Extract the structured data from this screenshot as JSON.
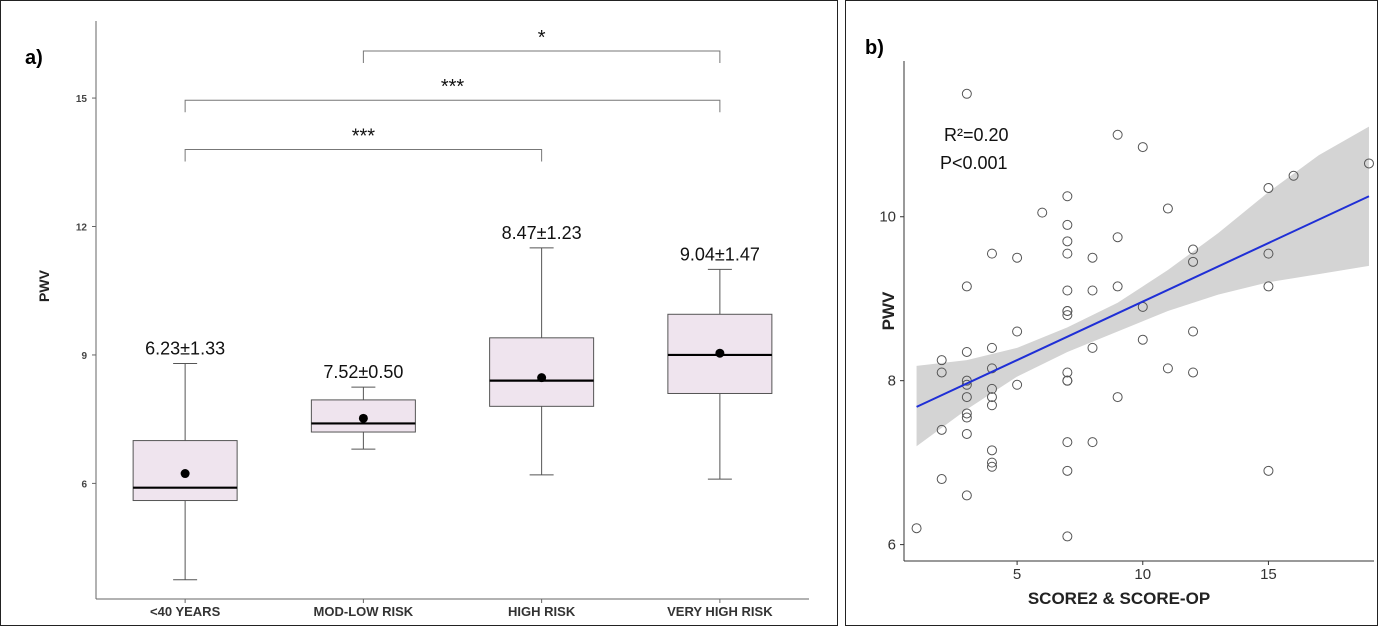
{
  "chart_data": [
    {
      "type": "box",
      "panel_label": "a)",
      "ylabel": "PWV",
      "xlabel": "",
      "ylim": [
        3.3,
        16.8
      ],
      "yticks": [
        6,
        9,
        12,
        15
      ],
      "categories": [
        "<40 YEARS",
        "MOD-LOW RISK",
        "HIGH RISK",
        "VERY HIGH RISK"
      ],
      "boxes": [
        {
          "min": 3.75,
          "q1": 5.6,
          "median": 5.9,
          "q3": 7.0,
          "max": 8.8,
          "mean": 6.23
        },
        {
          "min": 6.8,
          "q1": 7.2,
          "median": 7.4,
          "q3": 7.95,
          "max": 8.25,
          "mean": 7.52
        },
        {
          "min": 6.2,
          "q1": 7.8,
          "median": 8.4,
          "q3": 9.4,
          "max": 11.5,
          "mean": 8.47
        },
        {
          "min": 6.1,
          "q1": 8.1,
          "median": 9.0,
          "q3": 9.95,
          "max": 11.0,
          "mean": 9.04
        }
      ],
      "mean_labels": [
        "6.23±1.33",
        "7.52±0.50",
        "8.47±1.23",
        "9.04±1.47"
      ],
      "significance": [
        {
          "from": 1,
          "to": 3,
          "label": "*",
          "y": 16.1
        },
        {
          "from": 0,
          "to": 3,
          "label": "***",
          "y": 14.95
        },
        {
          "from": 0,
          "to": 2,
          "label": "***",
          "y": 13.8
        }
      ],
      "colors": {
        "box_fill": "#efe4ee",
        "box_stroke": "#555555",
        "median": "#000000",
        "mean": "#000000"
      }
    },
    {
      "type": "scatter",
      "panel_label": "b)",
      "xlabel": "SCORE2 & SCORE-OP",
      "ylabel": "PWV",
      "xlim": [
        0.5,
        19.2
      ],
      "ylim": [
        5.8,
        11.9
      ],
      "xticks": [
        5,
        10,
        15
      ],
      "yticks": [
        6,
        8,
        10
      ],
      "annotations": [
        "R²=0.20",
        "P<0.001"
      ],
      "regression": {
        "x": [
          1,
          19
        ],
        "y": [
          7.68,
          10.25
        ]
      },
      "confidence_band": {
        "x": [
          1,
          3,
          5,
          7,
          9,
          11,
          13,
          15,
          17,
          19
        ],
        "lower": [
          7.2,
          7.65,
          8.05,
          8.35,
          8.6,
          8.85,
          9.05,
          9.2,
          9.3,
          9.4
        ],
        "upper": [
          8.18,
          8.25,
          8.4,
          8.65,
          8.95,
          9.35,
          9.8,
          10.3,
          10.75,
          11.1
        ]
      },
      "x": [
        1,
        2,
        2,
        2,
        2,
        3,
        3,
        3,
        3,
        3,
        3,
        3,
        3,
        3,
        3,
        4,
        4,
        4,
        4,
        4,
        4,
        4,
        4,
        4,
        5,
        5,
        5,
        6,
        7,
        7,
        7,
        7,
        7,
        7,
        7,
        7,
        7,
        7,
        7,
        7,
        7,
        7,
        8,
        8,
        8,
        8,
        9,
        9,
        9,
        9,
        10,
        10,
        10,
        11,
        11,
        12,
        12,
        12,
        12,
        15,
        15,
        15,
        15,
        16,
        19
      ],
      "y": [
        6.2,
        8.25,
        8.1,
        7.4,
        6.8,
        11.5,
        9.15,
        8.35,
        7.95,
        7.8,
        7.6,
        7.55,
        7.35,
        6.6,
        8.0,
        9.55,
        8.4,
        8.15,
        7.9,
        7.8,
        7.7,
        7.15,
        7.0,
        6.95,
        9.5,
        8.6,
        7.95,
        10.05,
        10.25,
        9.9,
        9.7,
        9.55,
        8.85,
        8.8,
        8.1,
        8.0,
        7.25,
        6.9,
        6.1,
        8.85,
        9.1,
        8.0,
        9.5,
        9.1,
        8.4,
        7.25,
        11.0,
        9.75,
        9.15,
        7.8,
        10.85,
        8.9,
        8.5,
        10.1,
        8.15,
        9.6,
        9.45,
        8.6,
        8.1,
        10.35,
        9.55,
        9.15,
        6.9,
        10.5,
        10.65
      ],
      "colors": {
        "point_stroke": "#555555",
        "line": "#1f2fd6",
        "band": "#d4d4d4"
      }
    }
  ]
}
